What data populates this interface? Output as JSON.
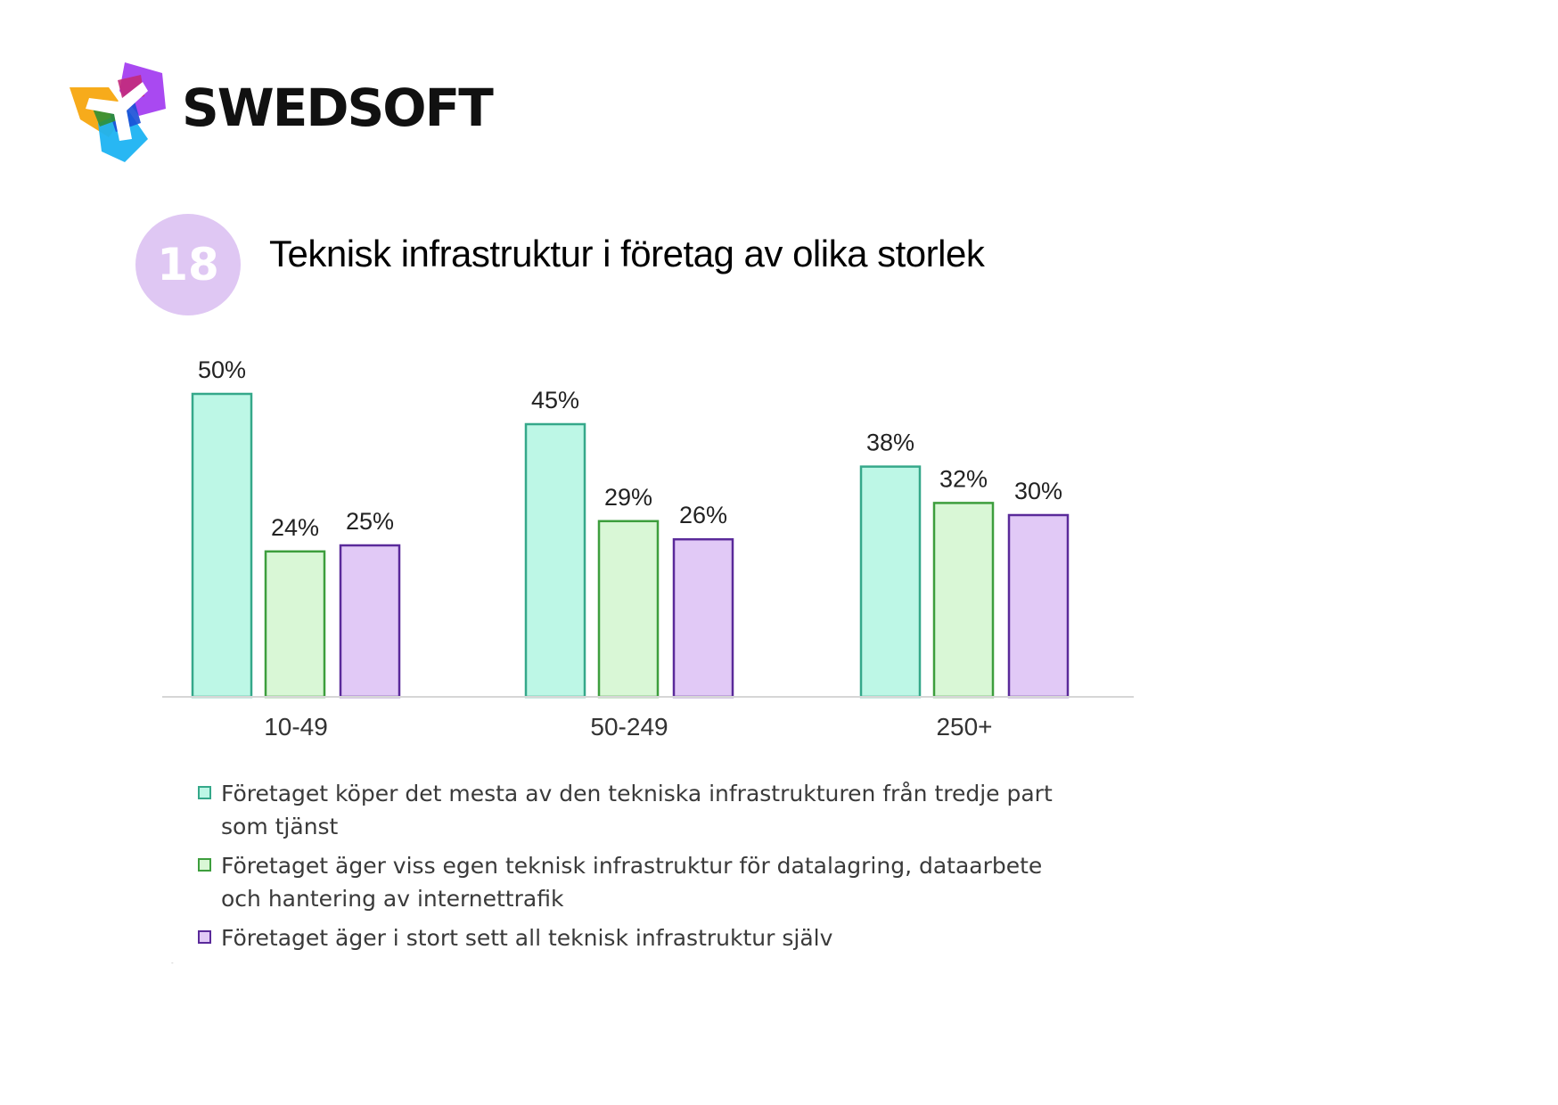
{
  "logo": {
    "text": "SWEDSOFT"
  },
  "badge": {
    "number": "18"
  },
  "chart_data": {
    "type": "bar",
    "title": "Teknisk infrastruktur i företag av olika storlek",
    "categories": [
      "10-49",
      "50-249",
      "250+"
    ],
    "series": [
      {
        "name": "Företaget köper det mesta av den tekniska infrastrukturen från tredje part som tjänst",
        "values": [
          50,
          45,
          38
        ],
        "labels": [
          "50%",
          "45%",
          "38%"
        ],
        "fill": "#bdf7e6",
        "stroke": "#35a88a"
      },
      {
        "name": "Företaget äger viss egen teknisk infrastruktur för datalagring, dataarbete och hantering av internettrafik",
        "values": [
          24,
          29,
          32
        ],
        "labels": [
          "24%",
          "29%",
          "32%"
        ],
        "fill": "#d9f7d6",
        "stroke": "#3d9e3d"
      },
      {
        "name": "Företaget äger i stort sett all teknisk infrastruktur själv",
        "values": [
          25,
          26,
          30
        ],
        "labels": [
          "25%",
          "26%",
          "30%"
        ],
        "fill": "#e1c9f6",
        "stroke": "#5a2a9a"
      }
    ],
    "ylim": [
      0,
      50
    ],
    "grid": false,
    "legend": "bottom",
    "xlabel": "",
    "ylabel": ""
  },
  "footnote": "-"
}
